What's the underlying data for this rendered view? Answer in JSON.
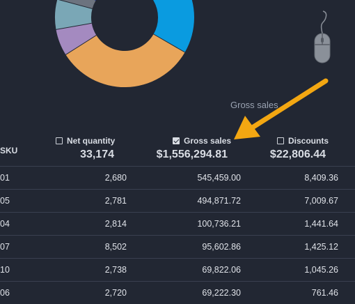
{
  "chart": {
    "label": "Gross sales",
    "slices": [
      {
        "color": "#0a9be0"
      },
      {
        "color": "#e8a55a"
      },
      {
        "color": "#a48ac0"
      },
      {
        "color": "#7aa7b6"
      },
      {
        "color": "#6c737f"
      },
      {
        "color": "#2b3fa0"
      }
    ]
  },
  "columns": {
    "sku": {
      "label": "SKU"
    },
    "net_quantity": {
      "label": "Net quantity",
      "total": "33,174",
      "checked": false
    },
    "gross_sales": {
      "label": "Gross sales",
      "total": "$1,556,294.81",
      "checked": true
    },
    "discounts": {
      "label": "Discounts",
      "total": "$22,806.44",
      "checked": false
    }
  },
  "rows": [
    {
      "sku": "01",
      "net_quantity": "2,680",
      "gross_sales": "545,459.00",
      "discounts": "8,409.36"
    },
    {
      "sku": "05",
      "net_quantity": "2,781",
      "gross_sales": "494,871.72",
      "discounts": "7,009.67"
    },
    {
      "sku": "04",
      "net_quantity": "2,814",
      "gross_sales": "100,736.21",
      "discounts": "1,441.64"
    },
    {
      "sku": "07",
      "net_quantity": "8,502",
      "gross_sales": "95,602.86",
      "discounts": "1,425.12"
    },
    {
      "sku": "10",
      "net_quantity": "2,738",
      "gross_sales": "69,822.06",
      "discounts": "1,045.26"
    },
    {
      "sku": "06",
      "net_quantity": "2,720",
      "gross_sales": "69,222.30",
      "discounts": "761.46"
    }
  ],
  "icons": {
    "mouse": "mouse-icon",
    "arrow": "arrow-icon",
    "checkbox": "checkbox-icon"
  }
}
